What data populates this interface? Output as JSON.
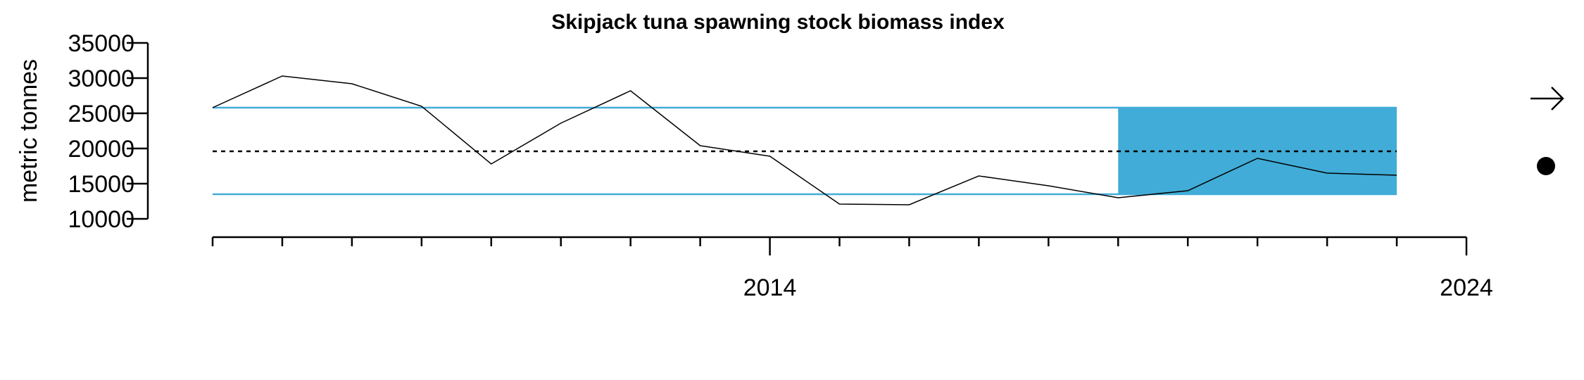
{
  "chart_data": {
    "type": "line",
    "title": "Skipjack tuna spawning stock biomass index",
    "xlabel": "",
    "ylabel": "metric tonnes",
    "xlim": [
      2006,
      2024
    ],
    "ylim": [
      10000,
      35000
    ],
    "y_ticks": [
      10000,
      15000,
      20000,
      25000,
      30000,
      35000
    ],
    "y_tick_labels": [
      "10000",
      "15000",
      "20000",
      "25000",
      "30000",
      "35000"
    ],
    "x_minor_ticks": [
      2006,
      2007,
      2008,
      2009,
      2010,
      2011,
      2012,
      2013,
      2014,
      2015,
      2016,
      2017,
      2018,
      2019,
      2020,
      2021,
      2022,
      2023,
      2024
    ],
    "x_major_ticks": [
      2014,
      2024
    ],
    "x_tick_labels": [
      "2014",
      "2024"
    ],
    "grid": false,
    "series": [
      {
        "x": [
          2006,
          2007,
          2008,
          2009,
          2010,
          2011,
          2012,
          2013,
          2014,
          2015,
          2016,
          2017,
          2018,
          2019,
          2020,
          2021,
          2022,
          2023
        ],
        "values": [
          25800,
          30300,
          29200,
          26000,
          17800,
          23600,
          28200,
          20400,
          18900,
          12100,
          12000,
          16100,
          14700,
          13000,
          14000,
          18600,
          16500,
          16200
        ]
      }
    ],
    "reference_lines": {
      "mean": 19600,
      "upper_sd": 25800,
      "lower_sd": 13500
    },
    "highlight_period": {
      "x_start": 2019,
      "x_end": 2023
    },
    "indicators": {
      "trend": "arrow-right-icon",
      "status": "filled-circle-icon"
    },
    "colors": {
      "line": "#000000",
      "sd_lines": "#41acd7",
      "highlight_fill": "#41acd7",
      "mean_line": "#000000"
    }
  }
}
